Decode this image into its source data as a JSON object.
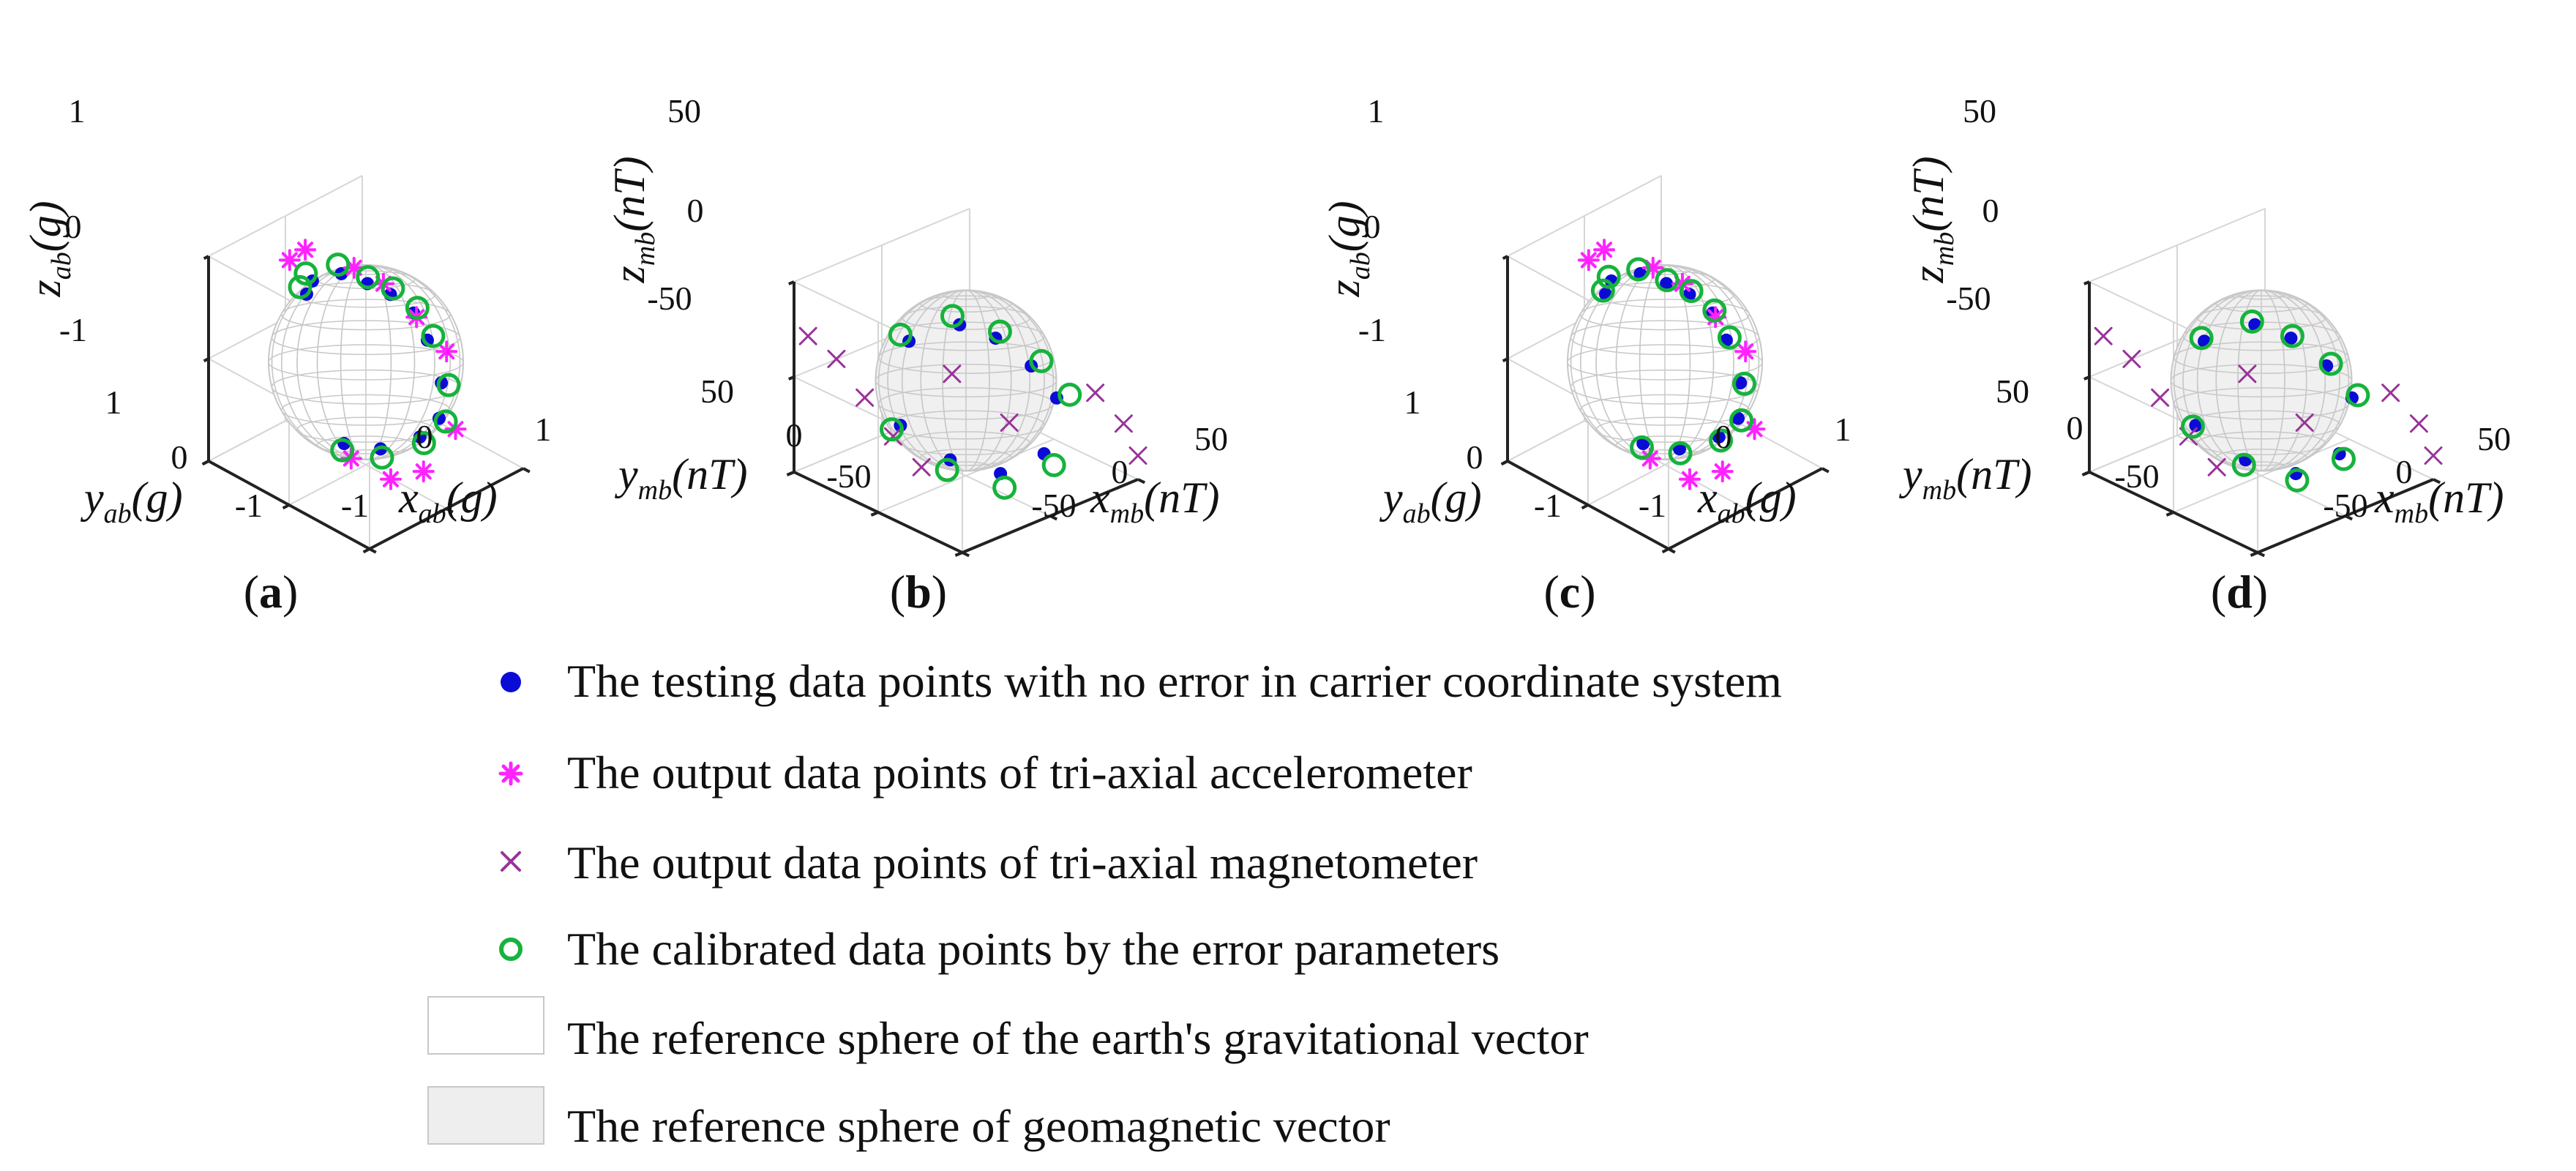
{
  "chart_data": [
    {
      "type": "scatter",
      "panel_label": "a",
      "xlabel": "x_ab(g)",
      "ylabel": "y_ab(g)",
      "zlabel": "z_ab(g)",
      "xlabel_main": "x",
      "xlabel_sub": "ab",
      "xlabel_unit": "(g)",
      "ylabel_main": "y",
      "ylabel_sub": "ab",
      "ylabel_unit": "(g)",
      "zlabel_main": "z",
      "zlabel_sub": "ab",
      "zlabel_unit": "(g)",
      "xticks": [
        "-1",
        "0",
        "1"
      ],
      "yticks": [
        "-1",
        "0",
        "1"
      ],
      "zticks": [
        "-1",
        "0",
        "1"
      ],
      "xlim": [
        -1.2,
        1.2
      ],
      "ylim": [
        -1.2,
        1.2
      ],
      "zlim": [
        -1.2,
        1.2
      ],
      "sphere": "gravitational",
      "series": [
        {
          "name": "testing",
          "points": [
            [
              -0.35,
              0.55,
              0.7
            ],
            [
              -0.05,
              0.75,
              0.65
            ],
            [
              0.35,
              0.7,
              0.6
            ],
            [
              0.6,
              0.55,
              0.45
            ],
            [
              0.75,
              0.35,
              0.35
            ],
            [
              0.85,
              0.1,
              0.2
            ],
            [
              0.75,
              -0.2,
              0.05
            ],
            [
              0.55,
              -0.6,
              -0.2
            ],
            [
              0.2,
              -0.9,
              -0.35
            ],
            [
              -0.1,
              -0.9,
              -0.45
            ],
            [
              -0.4,
              -0.6,
              -0.6
            ],
            [
              -0.55,
              -0.2,
              -0.65
            ]
          ]
        },
        {
          "name": "accelerometer",
          "points": [
            [
              -0.3,
              0.85,
              0.95
            ],
            [
              0.1,
              1.0,
              0.85
            ],
            [
              0.6,
              0.75,
              0.55
            ],
            [
              0.85,
              0.55,
              0.35
            ],
            [
              1.0,
              0.2,
              0.05
            ],
            [
              1.05,
              -0.2,
              -0.2
            ],
            [
              0.3,
              -1.05,
              -0.45
            ],
            [
              -0.2,
              -1.05,
              -0.75
            ],
            [
              -0.45,
              -0.8,
              -0.85
            ],
            [
              -0.65,
              -0.4,
              -0.7
            ]
          ]
        },
        {
          "name": "calibrated",
          "points": [
            [
              -0.4,
              0.6,
              0.78
            ],
            [
              -0.08,
              0.82,
              0.72
            ],
            [
              0.38,
              0.78,
              0.66
            ],
            [
              0.66,
              0.6,
              0.48
            ],
            [
              0.82,
              0.38,
              0.38
            ],
            [
              0.93,
              0.12,
              0.22
            ],
            [
              0.82,
              -0.22,
              0.08
            ],
            [
              0.6,
              -0.66,
              -0.22
            ],
            [
              0.22,
              -0.98,
              -0.36
            ],
            [
              -0.12,
              -0.98,
              -0.48
            ],
            [
              -0.44,
              -0.66,
              -0.66
            ],
            [
              -0.6,
              -0.22,
              -0.7
            ]
          ]
        }
      ]
    },
    {
      "type": "scatter",
      "panel_label": "b",
      "xlabel": "x_mb(nT)",
      "ylabel": "y_mb(nT)",
      "zlabel": "z_mb(nT)",
      "xlabel_main": "x",
      "xlabel_sub": "mb",
      "xlabel_unit": "(nT)",
      "ylabel_main": "y",
      "ylabel_sub": "mb",
      "ylabel_unit": "(nT)",
      "zlabel_main": "z",
      "zlabel_sub": "mb",
      "zlabel_unit": "(nT)",
      "xticks": [
        "-50",
        "0",
        "50"
      ],
      "yticks": [
        "-50",
        "0",
        "50"
      ],
      "zticks": [
        "-50",
        "0",
        "50"
      ],
      "xlim": [
        -60,
        60
      ],
      "ylim": [
        -60,
        60
      ],
      "zlim": [
        -60,
        60
      ],
      "sphere": "geomagnetic",
      "series": [
        {
          "name": "testing",
          "points": [
            [
              -15,
              25,
              20
            ],
            [
              10,
              15,
              25
            ],
            [
              25,
              5,
              15
            ],
            [
              35,
              -10,
              0
            ],
            [
              38,
              -25,
              -15
            ],
            [
              15,
              -40,
              -35
            ],
            [
              -10,
              -35,
              -40
            ],
            [
              -30,
              -20,
              -30
            ],
            [
              -40,
              5,
              -15
            ]
          ]
        },
        {
          "name": "magnetometer",
          "points": [
            [
              -60,
              50,
              30
            ],
            [
              -55,
              35,
              20
            ],
            [
              -50,
              20,
              0
            ],
            [
              -45,
              5,
              -20
            ],
            [
              -40,
              -10,
              -35
            ],
            [
              0,
              10,
              0
            ],
            [
              20,
              -10,
              -30
            ],
            [
              50,
              -40,
              -10
            ],
            [
              55,
              -55,
              -25
            ],
            [
              60,
              -60,
              -45
            ]
          ]
        },
        {
          "name": "calibrated",
          "points": [
            [
              -18,
              28,
              24
            ],
            [
              8,
              18,
              30
            ],
            [
              28,
              5,
              18
            ],
            [
              40,
              -12,
              2
            ],
            [
              44,
              -28,
              -14
            ],
            [
              16,
              -46,
              -40
            ],
            [
              -12,
              -40,
              -46
            ],
            [
              -34,
              -22,
              -34
            ],
            [
              -45,
              6,
              -16
            ]
          ]
        }
      ]
    },
    {
      "type": "scatter",
      "panel_label": "c",
      "xlabel": "x_ab(g)",
      "ylabel": "y_ab(g)",
      "zlabel": "z_ab(g)",
      "xlabel_main": "x",
      "xlabel_sub": "ab",
      "xlabel_unit": "(g)",
      "ylabel_main": "y",
      "ylabel_sub": "ab",
      "ylabel_unit": "(g)",
      "zlabel_main": "z",
      "zlabel_sub": "ab",
      "zlabel_unit": "(g)",
      "xticks": [
        "-1",
        "0",
        "1"
      ],
      "yticks": [
        "-1",
        "0",
        "1"
      ],
      "zticks": [
        "-1",
        "0",
        "1"
      ],
      "xlim": [
        -1.2,
        1.2
      ],
      "ylim": [
        -1.2,
        1.2
      ],
      "zlim": [
        -1.2,
        1.2
      ],
      "sphere": "gravitational",
      "series": [
        {
          "name": "testing",
          "points": [
            [
              -0.35,
              0.55,
              0.7
            ],
            [
              -0.05,
              0.75,
              0.65
            ],
            [
              0.35,
              0.7,
              0.6
            ],
            [
              0.6,
              0.55,
              0.45
            ],
            [
              0.75,
              0.35,
              0.35
            ],
            [
              0.85,
              0.1,
              0.2
            ],
            [
              0.75,
              -0.2,
              0.05
            ],
            [
              0.55,
              -0.6,
              -0.2
            ],
            [
              0.2,
              -0.9,
              -0.35
            ],
            [
              -0.1,
              -0.9,
              -0.45
            ],
            [
              -0.4,
              -0.6,
              -0.6
            ],
            [
              -0.55,
              -0.2,
              -0.65
            ]
          ]
        },
        {
          "name": "accelerometer",
          "points": [
            [
              -0.3,
              0.85,
              0.95
            ],
            [
              0.1,
              1.0,
              0.85
            ],
            [
              0.6,
              0.75,
              0.55
            ],
            [
              0.85,
              0.55,
              0.35
            ],
            [
              1.0,
              0.2,
              0.05
            ],
            [
              1.05,
              -0.2,
              -0.2
            ],
            [
              0.3,
              -1.05,
              -0.45
            ],
            [
              -0.2,
              -1.05,
              -0.75
            ],
            [
              -0.45,
              -0.8,
              -0.85
            ],
            [
              -0.65,
              -0.4,
              -0.7
            ]
          ]
        },
        {
          "name": "calibrated",
          "points": [
            [
              -0.37,
              0.57,
              0.74
            ],
            [
              -0.06,
              0.78,
              0.69
            ],
            [
              0.36,
              0.74,
              0.63
            ],
            [
              0.63,
              0.57,
              0.47
            ],
            [
              0.79,
              0.36,
              0.37
            ],
            [
              0.89,
              0.11,
              0.21
            ],
            [
              0.79,
              -0.21,
              0.07
            ],
            [
              0.58,
              -0.63,
              -0.21
            ],
            [
              0.21,
              -0.94,
              -0.36
            ],
            [
              -0.11,
              -0.94,
              -0.47
            ],
            [
              -0.42,
              -0.63,
              -0.63
            ],
            [
              -0.58,
              -0.21,
              -0.68
            ]
          ]
        }
      ]
    },
    {
      "type": "scatter",
      "panel_label": "d",
      "xlabel": "x_mb(nT)",
      "ylabel": "y_mb(nT)",
      "zlabel": "z_mb(nT)",
      "xlabel_main": "x",
      "xlabel_sub": "mb",
      "xlabel_unit": "(nT)",
      "ylabel_main": "y",
      "ylabel_sub": "mb",
      "ylabel_unit": "(nT)",
      "zlabel_main": "z",
      "zlabel_sub": "mb",
      "zlabel_unit": "(nT)",
      "xticks": [
        "-50",
        "0",
        "50"
      ],
      "yticks": [
        "-50",
        "0",
        "50"
      ],
      "zticks": [
        "-50",
        "0",
        "50"
      ],
      "xlim": [
        -60,
        60
      ],
      "ylim": [
        -60,
        60
      ],
      "zlim": [
        -60,
        60
      ],
      "sphere": "geomagnetic",
      "series": [
        {
          "name": "testing",
          "points": [
            [
              -15,
              25,
              20
            ],
            [
              10,
              15,
              25
            ],
            [
              25,
              5,
              15
            ],
            [
              35,
              -10,
              0
            ],
            [
              38,
              -25,
              -15
            ],
            [
              15,
              -40,
              -35
            ],
            [
              -10,
              -35,
              -40
            ],
            [
              -30,
              -20,
              -30
            ],
            [
              -40,
              5,
              -15
            ]
          ]
        },
        {
          "name": "magnetometer",
          "points": [
            [
              -60,
              50,
              30
            ],
            [
              -55,
              35,
              20
            ],
            [
              -50,
              20,
              0
            ],
            [
              -45,
              5,
              -20
            ],
            [
              -40,
              -10,
              -35
            ],
            [
              0,
              10,
              0
            ],
            [
              20,
              -10,
              -30
            ],
            [
              50,
              -40,
              -10
            ],
            [
              55,
              -55,
              -25
            ],
            [
              60,
              -60,
              -45
            ]
          ]
        },
        {
          "name": "calibrated",
          "points": [
            [
              -16,
              26,
              22
            ],
            [
              9,
              16,
              27
            ],
            [
              26,
              5,
              16
            ],
            [
              37,
              -11,
              1
            ],
            [
              41,
              -26,
              -14
            ],
            [
              15,
              -43,
              -37
            ],
            [
              -11,
              -37,
              -43
            ],
            [
              -32,
              -21,
              -32
            ],
            [
              -42,
              5,
              -15
            ]
          ]
        }
      ]
    }
  ],
  "legend": {
    "items": [
      {
        "symbol": "dot",
        "label": "The testing data points with no error in carrier coordinate system"
      },
      {
        "symbol": "asterisk",
        "label": "The output data points of tri-axial accelerometer"
      },
      {
        "symbol": "cross",
        "label": "The output data points of tri-axial magnetometer"
      },
      {
        "symbol": "circle",
        "label": "The calibrated data points by the error parameters"
      },
      {
        "symbol": "white-box",
        "label": "The reference sphere of the earth's gravitational vector"
      },
      {
        "symbol": "gray-box",
        "label": "The reference sphere of geomagnetic vector"
      }
    ]
  },
  "colors": {
    "testing": "#0b0bd6",
    "accelerometer": "#ff22ff",
    "magnetometer": "#993399",
    "calibrated": "#16b33c",
    "axis": "#222222",
    "grid": "#d6d6d6",
    "sphere_grav_fill": "#ffffff",
    "sphere_geo_fill": "#f0f0f0",
    "sphere_mesh": "#c8c8c8",
    "legend_box_stroke": "#c8c8c8",
    "legend_gray_box": "#eeeeee"
  }
}
